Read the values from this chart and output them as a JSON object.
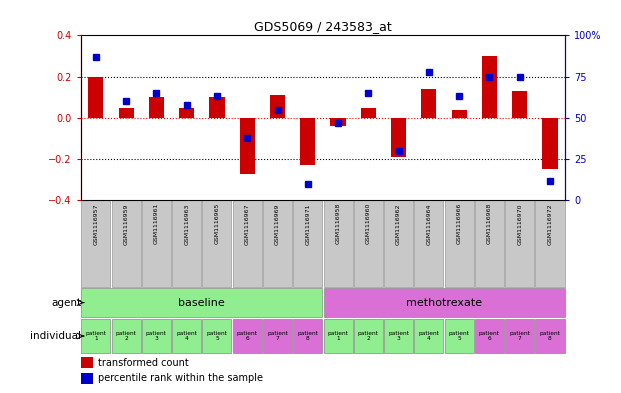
{
  "title": "GDS5069 / 243583_at",
  "samples": [
    "GSM1116957",
    "GSM1116959",
    "GSM1116961",
    "GSM1116963",
    "GSM1116965",
    "GSM1116967",
    "GSM1116969",
    "GSM1116971",
    "GSM1116958",
    "GSM1116960",
    "GSM1116962",
    "GSM1116964",
    "GSM1116966",
    "GSM1116968",
    "GSM1116970",
    "GSM1116972"
  ],
  "transformed_count": [
    0.2,
    0.05,
    0.1,
    0.05,
    0.1,
    -0.27,
    0.11,
    -0.23,
    -0.04,
    0.05,
    -0.19,
    0.14,
    0.04,
    0.3,
    0.13,
    -0.25
  ],
  "percentile_rank": [
    87,
    60,
    65,
    58,
    63,
    38,
    55,
    10,
    47,
    65,
    30,
    78,
    63,
    75,
    75,
    12
  ],
  "ylim_left": [
    -0.4,
    0.4
  ],
  "ylim_right": [
    0,
    100
  ],
  "yticks_left": [
    -0.4,
    -0.2,
    0.0,
    0.2,
    0.4
  ],
  "yticks_right": [
    0,
    25,
    50,
    75,
    100
  ],
  "ytick_labels_right": [
    "0",
    "25",
    "50",
    "75",
    "100%"
  ],
  "hlines_dotted": [
    0.2,
    -0.2
  ],
  "hline_red": 0.0,
  "agent_groups": [
    {
      "label": "baseline",
      "start": 0,
      "end": 7,
      "color": "#90EE90"
    },
    {
      "label": "methotrexate",
      "start": 8,
      "end": 15,
      "color": "#DA70D6"
    }
  ],
  "individual_labels": [
    "patient\n1",
    "patient\n2",
    "patient\n3",
    "patient\n4",
    "patient\n5",
    "patient\n6",
    "patient\n7",
    "patient\n8",
    "patient\n1",
    "patient\n2",
    "patient\n3",
    "patient\n4",
    "patient\n5",
    "patient\n6",
    "patient\n7",
    "patient\n8"
  ],
  "indiv_colors": [
    "#90EE90",
    "#90EE90",
    "#90EE90",
    "#90EE90",
    "#90EE90",
    "#DA70D6",
    "#DA70D6",
    "#DA70D6",
    "#90EE90",
    "#90EE90",
    "#90EE90",
    "#90EE90",
    "#90EE90",
    "#DA70D6",
    "#DA70D6",
    "#DA70D6"
  ],
  "bar_color": "#CC0000",
  "dot_color": "#0000CC",
  "legend_bar_label": "transformed count",
  "legend_dot_label": "percentile rank within the sample",
  "row_label_agent": "agent",
  "row_label_individual": "individual",
  "sample_bg_color": "#C8C8C8",
  "sample_border_color": "#999999"
}
